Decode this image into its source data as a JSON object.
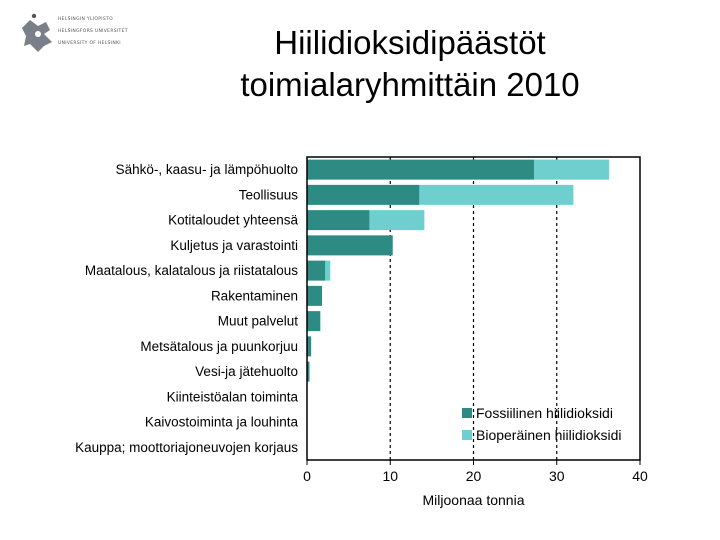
{
  "logo": {
    "lines": [
      "HELSINGIN YLIOPISTO",
      "HELSINGFORS UNIVERSITET",
      "UNIVERSITY OF HELSINKI"
    ]
  },
  "title": {
    "line1": "Hiilidioksidipäästöt",
    "line2": "toimialaryhmittäin 2010"
  },
  "colors": {
    "fossil": "#2e8b84",
    "bio": "#6fcfcf"
  },
  "chart_data": {
    "type": "bar",
    "orientation": "horizontal",
    "stacked": true,
    "categories": [
      "Sähkö-, kaasu- ja lämpöhuolto",
      "Teollisuus",
      "Kotitaloudet yhteensä",
      "Kuljetus ja varastointi",
      "Maatalous, kalatalous ja riistatalous",
      "Rakentaminen",
      "Muut palvelut",
      "Metsätalous ja puunkorjuu",
      "Vesi-ja jätehuolto",
      "Kiinteistöalan toiminta",
      "Kaivostoiminta ja louhinta",
      "Kauppa; moottoriajoneuvojen korjaus"
    ],
    "series": [
      {
        "name": "Fossiilinen hiilidioksidi",
        "values": [
          27.3,
          13.5,
          7.5,
          10.3,
          2.2,
          1.8,
          1.6,
          0.5,
          0.3,
          0,
          0,
          0
        ]
      },
      {
        "name": "Bioperäinen hiilidioksidi",
        "values": [
          9.0,
          18.5,
          6.6,
          0,
          0.6,
          0,
          0,
          0,
          0,
          0,
          0,
          0
        ]
      }
    ],
    "xlim": [
      0,
      40
    ],
    "xticks": [
      "0",
      "10",
      "20",
      "30",
      "40"
    ],
    "xlabel": "Miljoonaa tonnia",
    "ylabel": "",
    "gridlines": [
      10,
      20,
      30
    ],
    "legend_position": "bottom-right"
  }
}
